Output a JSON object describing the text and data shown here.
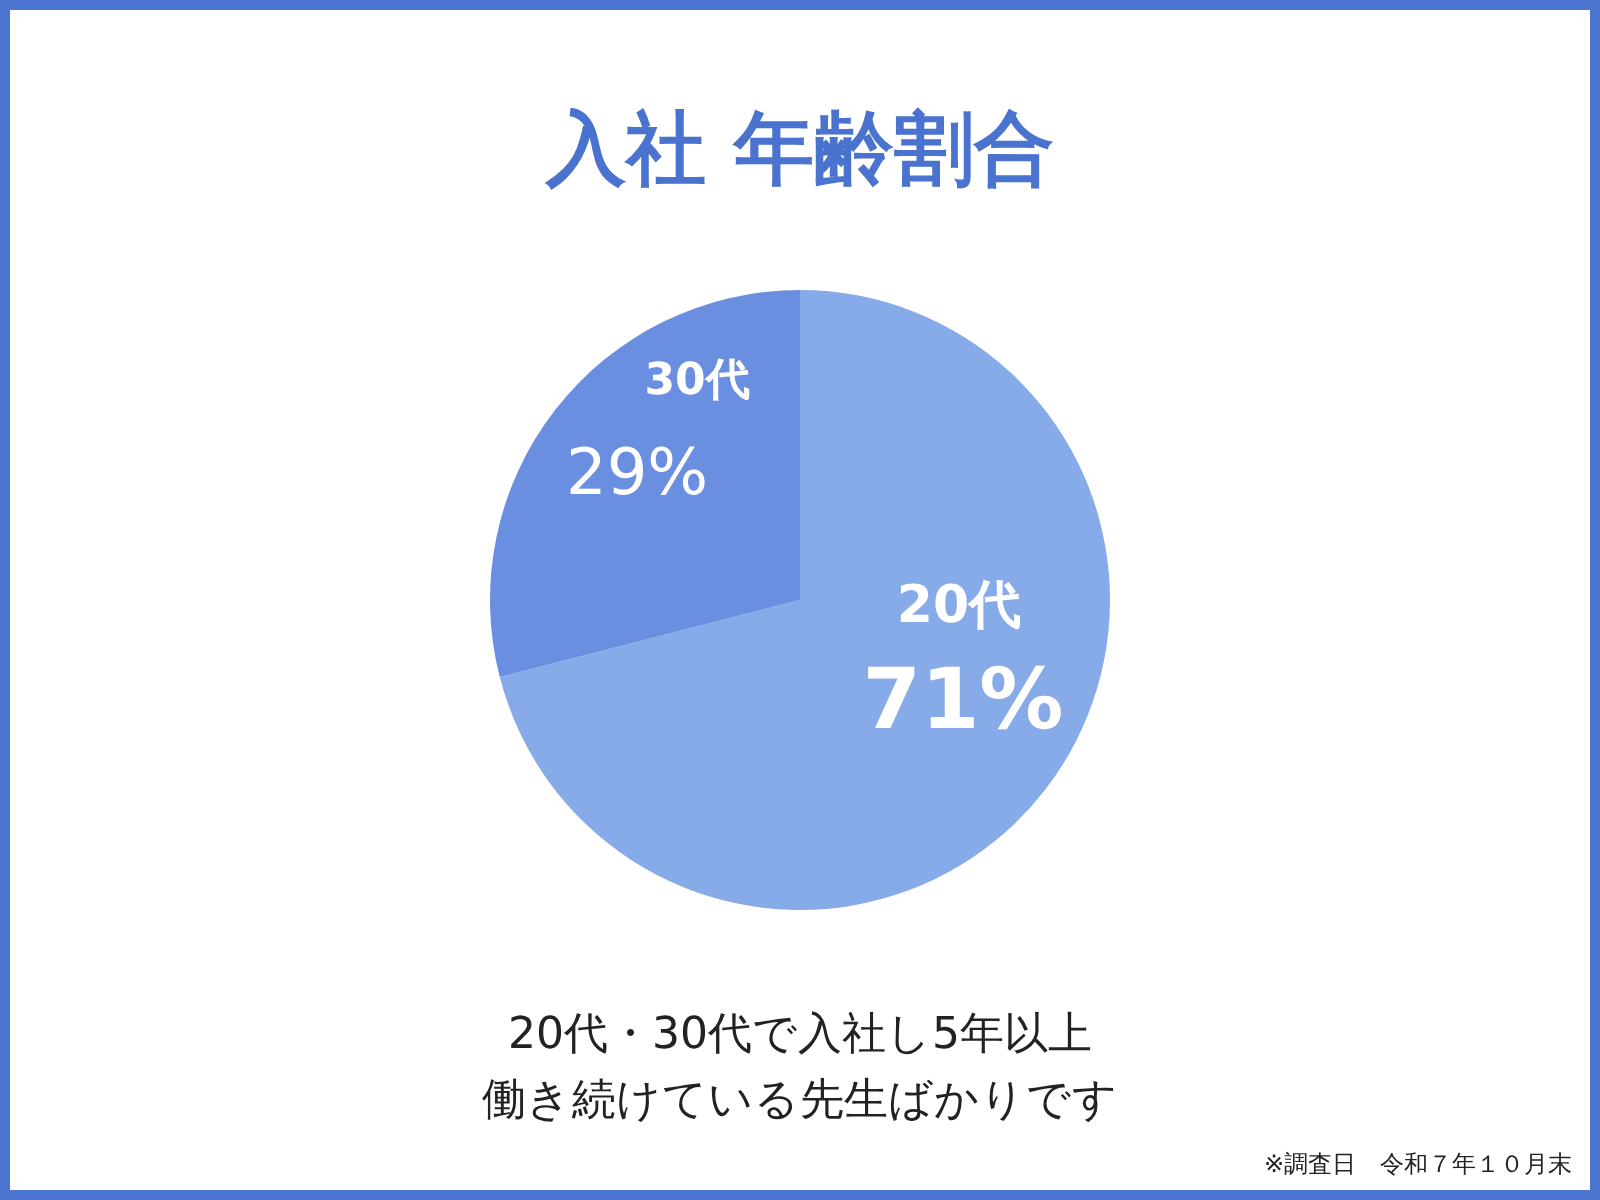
{
  "chart_data": {
    "type": "pie",
    "title": "入社 年齢割合",
    "categories": [
      "20代",
      "30代"
    ],
    "values": [
      71,
      29
    ],
    "colors": [
      "#87aae8",
      "#6b8fe0"
    ],
    "value_labels": [
      "71%",
      "29%"
    ],
    "annotations": [
      "20代・30代で入社し5年以上",
      "働き続けている先生ばかりです",
      "※調査日　令和７年１０月末"
    ]
  }
}
